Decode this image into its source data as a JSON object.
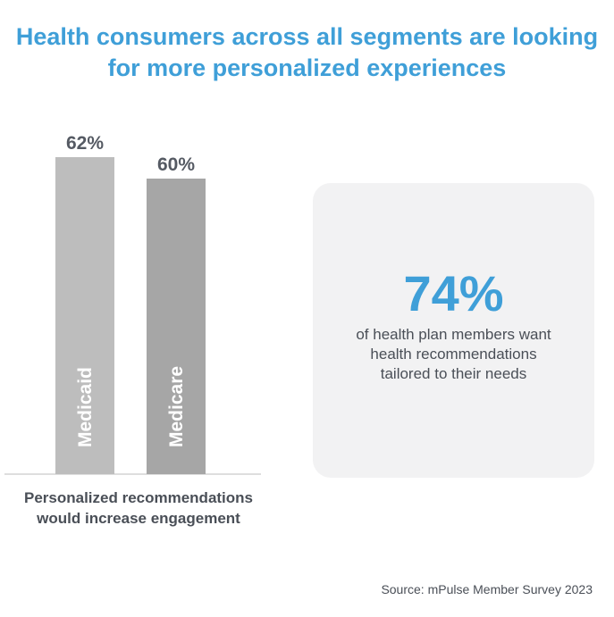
{
  "title_line1": "Health consumers across all segments are looking",
  "title_line2": "for more personalized experiences",
  "chart_data": {
    "type": "bar",
    "categories": [
      "Medicaid",
      "Medicare"
    ],
    "values": [
      62,
      60
    ],
    "value_labels": [
      "62%",
      "60%"
    ],
    "xlabel": "Personalized recommendations would increase engagement",
    "colors": [
      "#bdbdbd",
      "#a6a6a6"
    ]
  },
  "caption_line1": "Personalized recommendations",
  "caption_line2": "would increase engagement",
  "stat": {
    "value": "74%",
    "line1": "of health plan members want",
    "line2": "health recommendations",
    "line3": "tailored to their needs"
  },
  "source": "Source: mPulse Member Survey 2023",
  "colors": {
    "accent": "#3f9fd8",
    "text": "#4a4f57",
    "card": "#f2f2f3"
  }
}
